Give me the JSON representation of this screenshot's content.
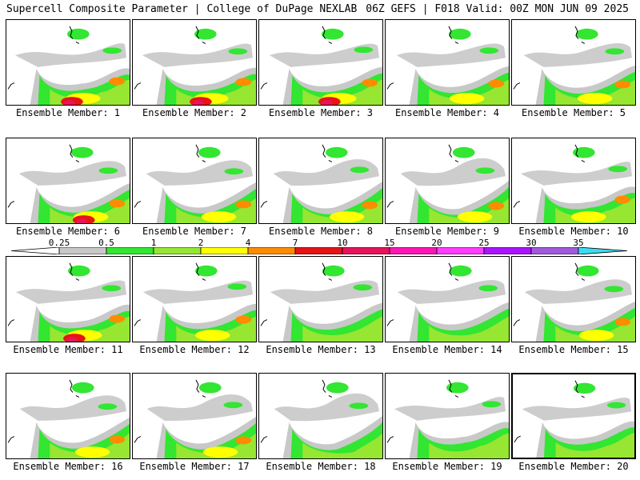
{
  "header": {
    "title": "Supercell Composite Parameter | College of DuPage NEXLAB",
    "run_info": "06Z GEFS | F018 Valid: 00Z MON JUN 09 2025"
  },
  "legend": {
    "ticks": [
      {
        "label": "0.25",
        "color": "#c8c8c8"
      },
      {
        "label": "0.5",
        "color": "#32e632"
      },
      {
        "label": "1",
        "color": "#96e632"
      },
      {
        "label": "2",
        "color": "#ffff00"
      },
      {
        "label": "4",
        "color": "#ff8c00"
      },
      {
        "label": "7",
        "color": "#e61414"
      },
      {
        "label": "10",
        "color": "#e6145a"
      },
      {
        "label": "15",
        "color": "#ff14b4"
      },
      {
        "label": "20",
        "color": "#ff3cff"
      },
      {
        "label": "25",
        "color": "#aa14ff"
      },
      {
        "label": "30",
        "color": "#a05adc"
      },
      {
        "label": "35",
        "color": "#3cdcf0"
      }
    ]
  },
  "members": [
    {
      "label": "Ensemble Member: 1",
      "intensity": 3
    },
    {
      "label": "Ensemble Member: 2",
      "intensity": 3
    },
    {
      "label": "Ensemble Member: 3",
      "intensity": 3
    },
    {
      "label": "Ensemble Member: 4",
      "intensity": 2
    },
    {
      "label": "Ensemble Member: 5",
      "intensity": 2
    },
    {
      "label": "Ensemble Member: 6",
      "intensity": 3
    },
    {
      "label": "Ensemble Member: 7",
      "intensity": 2
    },
    {
      "label": "Ensemble Member: 8",
      "intensity": 2
    },
    {
      "label": "Ensemble Member: 9",
      "intensity": 2
    },
    {
      "label": "Ensemble Member: 10",
      "intensity": 2
    },
    {
      "label": "Ensemble Member: 11",
      "intensity": 3
    },
    {
      "label": "Ensemble Member: 12",
      "intensity": 2
    },
    {
      "label": "Ensemble Member: 13",
      "intensity": 1
    },
    {
      "label": "Ensemble Member: 14",
      "intensity": 1
    },
    {
      "label": "Ensemble Member: 15",
      "intensity": 2
    },
    {
      "label": "Ensemble Member: 16",
      "intensity": 2
    },
    {
      "label": "Ensemble Member: 17",
      "intensity": 2
    },
    {
      "label": "Ensemble Member: 18",
      "intensity": 1
    },
    {
      "label": "Ensemble Member: 19",
      "intensity": 1
    },
    {
      "label": "Ensemble Member: 20",
      "intensity": 1,
      "selected": true
    }
  ]
}
